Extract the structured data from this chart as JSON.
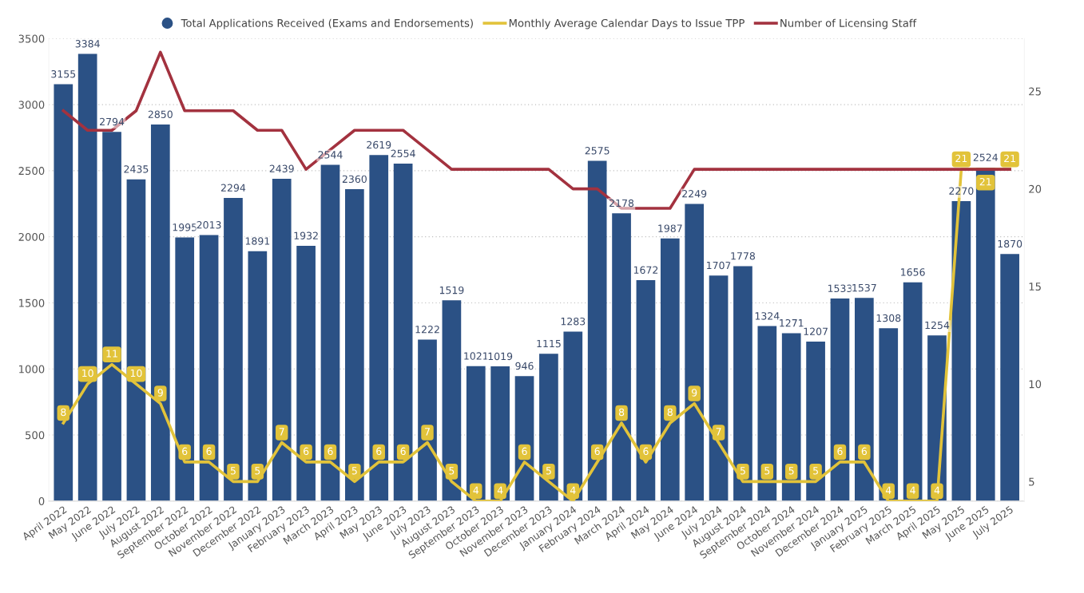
{
  "chart_data": {
    "type": "bar",
    "categories": [
      "April 2022",
      "May 2022",
      "June 2022",
      "July 2022",
      "August 2022",
      "September 2022",
      "October 2022",
      "November 2022",
      "December 2022",
      "January 2023",
      "February 2023",
      "March 2023",
      "April 2023",
      "May 2023",
      "June 2023",
      "July 2023",
      "August 2023",
      "September 2023",
      "October 2023",
      "November 2023",
      "December 2023",
      "January 2024",
      "February 2024",
      "March 2024",
      "April 2024",
      "May 2024",
      "June 2024",
      "July 2024",
      "August 2024",
      "September 2024",
      "October 2024",
      "November 2024",
      "December 2024",
      "January 2025",
      "February 2025",
      "March 2025",
      "April 2025",
      "May 2025",
      "June 2025",
      "July 2025"
    ],
    "series": [
      {
        "name": "Total Applications Received (Exams and Endorsements)",
        "color": "#2b5185",
        "data_labels": true,
        "values": [
          3155,
          3384,
          2794,
          2435,
          2850,
          1995,
          2013,
          2294,
          1891,
          2439,
          1932,
          2544,
          2360,
          2619,
          2554,
          1222,
          1519,
          1021,
          1019,
          946,
          1115,
          1283,
          2575,
          2178,
          1672,
          1987,
          2249,
          1707,
          1778,
          1324,
          1271,
          1207,
          1533,
          1537,
          1308,
          1656,
          1254,
          2270,
          2524,
          1870
        ]
      },
      {
        "name": "Monthly Average Calendar Days to Issue TPP",
        "type": "line",
        "axis": "y2",
        "color": "#e2c33a",
        "data_labels": true,
        "marker": "none",
        "values": [
          8,
          10,
          11,
          10,
          9,
          6,
          6,
          5,
          5,
          7,
          6,
          6,
          5,
          6,
          6,
          7,
          5,
          4,
          4,
          6,
          5,
          4,
          6,
          8,
          6,
          8,
          9,
          7,
          5,
          5,
          5,
          5,
          6,
          6,
          4,
          4,
          4,
          21,
          21,
          21
        ]
      },
      {
        "name": "Number of Licensing Staff",
        "type": "line",
        "axis": "y2",
        "color": "#a3323f",
        "values": [
          24,
          23,
          23,
          24,
          27,
          24,
          24,
          24,
          23,
          23,
          21,
          22,
          23,
          23,
          23,
          22,
          21,
          21,
          21,
          21,
          21,
          20,
          20,
          19,
          19,
          19,
          21,
          21,
          21,
          21,
          21,
          21,
          21,
          21,
          21,
          21,
          21,
          21,
          21,
          21
        ]
      }
    ],
    "ylim": [
      0,
      3500
    ],
    "yticks": [
      0,
      500,
      1000,
      1500,
      2000,
      2500,
      3000,
      3500
    ],
    "y2lim": [
      4,
      27.7
    ],
    "y2ticks": [
      5,
      10,
      15,
      20,
      25
    ],
    "grid": "y",
    "legend": "top"
  }
}
